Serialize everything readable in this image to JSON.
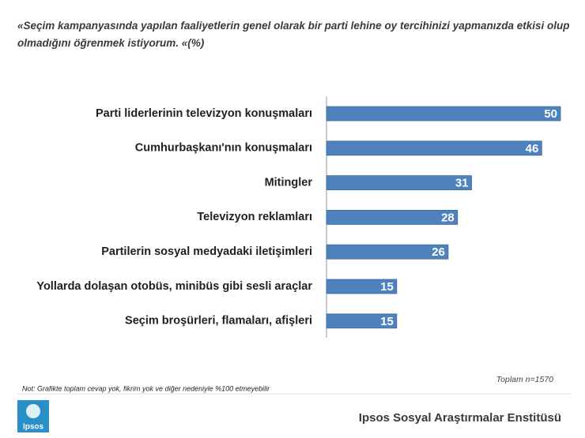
{
  "chart_data": {
    "type": "barh",
    "title": "«Seçim kampanyasında yapılan faaliyetlerin genel olarak bir parti lehine oy tercihinizi yapmanızda etkisi olup olmadığını öğrenmek istiyorum. «(%)",
    "categories": [
      "Parti liderlerinin televizyon konuşmaları",
      "Cumhurbaşkanı'nın konuşmaları",
      "Mitingler",
      "Televizyon reklamları",
      "Partilerin sosyal medyadaki iletişimleri",
      "Yollarda dolaşan otobüs, minibüs gibi sesli araçlar",
      "Seçim broşürleri, flamaları, afişleri"
    ],
    "values": [
      50,
      46,
      31,
      28,
      26,
      15,
      15
    ],
    "color": "#4f81bd",
    "xlim": [
      0,
      50
    ],
    "note": "Toplam n=1570",
    "footnote": "Not: Grafikte toplam cevap yok, fikrim yok ve diğer nedeniyle %100 etmeyebilir",
    "source": "Ipsos Sosyal Araştırmalar Enstitüsü",
    "logo": "Ipsos"
  }
}
